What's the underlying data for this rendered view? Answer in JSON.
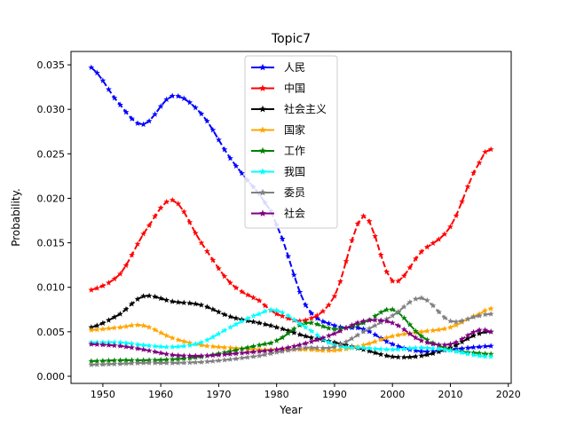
{
  "chart_data": {
    "type": "line",
    "title": "Topic7",
    "xlabel": "Year",
    "ylabel": "Probability.",
    "xlim": [
      1944.5,
      2020.5
    ],
    "ylim": [
      -0.0008,
      0.0365
    ],
    "xticks": [
      1950,
      1960,
      1970,
      1980,
      1990,
      2000,
      2010,
      2020
    ],
    "yticks": [
      0.0,
      0.005,
      0.01,
      0.015,
      0.02,
      0.025,
      0.03,
      0.035
    ],
    "ytick_labels": [
      "0.000",
      "0.005",
      "0.010",
      "0.015",
      "0.020",
      "0.025",
      "0.030",
      "0.035"
    ],
    "legend_position": "upper center",
    "grid": false,
    "x": [
      1948,
      1953,
      1957,
      1962,
      1967,
      1972,
      1977,
      1980,
      1985,
      1990,
      1995,
      2000,
      2005,
      2010,
      2015,
      2017
    ],
    "series": [
      {
        "name": "人民",
        "color": "#0000ff",
        "values": [
          0.0347,
          0.0305,
          0.0283,
          0.0315,
          0.0295,
          0.0245,
          0.0205,
          0.017,
          0.008,
          0.0057,
          0.0053,
          0.0036,
          0.0028,
          0.003,
          0.0033,
          0.0034
        ]
      },
      {
        "name": "中国",
        "color": "#ff0000",
        "values": [
          0.0097,
          0.0115,
          0.016,
          0.0198,
          0.015,
          0.0105,
          0.0085,
          0.007,
          0.0063,
          0.009,
          0.018,
          0.0107,
          0.014,
          0.0168,
          0.024,
          0.0255
        ]
      },
      {
        "name": "社会主义",
        "color": "#000000",
        "values": [
          0.0055,
          0.007,
          0.009,
          0.0084,
          0.008,
          0.0067,
          0.006,
          0.0055,
          0.0045,
          0.0038,
          0.003,
          0.0022,
          0.0023,
          0.0032,
          0.0048,
          0.005
        ]
      },
      {
        "name": "国家",
        "color": "#ffa500",
        "values": [
          0.0052,
          0.0055,
          0.0057,
          0.0043,
          0.0035,
          0.0032,
          0.003,
          0.003,
          0.003,
          0.0029,
          0.0035,
          0.0045,
          0.005,
          0.0055,
          0.007,
          0.0076
        ]
      },
      {
        "name": "工作",
        "color": "#008000",
        "values": [
          0.0017,
          0.0018,
          0.0018,
          0.0019,
          0.0022,
          0.0028,
          0.0035,
          0.004,
          0.006,
          0.0053,
          0.006,
          0.0075,
          0.0045,
          0.003,
          0.0026,
          0.0025
        ]
      },
      {
        "name": "我国",
        "color": "#00ffff",
        "values": [
          0.0038,
          0.0038,
          0.0035,
          0.0033,
          0.0038,
          0.0055,
          0.007,
          0.0074,
          0.0055,
          0.0035,
          0.0032,
          0.003,
          0.0032,
          0.0029,
          0.0023,
          0.0022
        ]
      },
      {
        "name": "委员",
        "color": "#808080",
        "values": [
          0.0013,
          0.0014,
          0.0015,
          0.0015,
          0.0016,
          0.0019,
          0.0023,
          0.0027,
          0.0032,
          0.0033,
          0.005,
          0.0068,
          0.0088,
          0.0062,
          0.0068,
          0.007
        ]
      },
      {
        "name": "社会",
        "color": "#800080",
        "values": [
          0.0036,
          0.0034,
          0.003,
          0.0024,
          0.0023,
          0.0025,
          0.0028,
          0.003,
          0.0037,
          0.0048,
          0.0062,
          0.006,
          0.004,
          0.0036,
          0.0052,
          0.005
        ]
      }
    ]
  }
}
